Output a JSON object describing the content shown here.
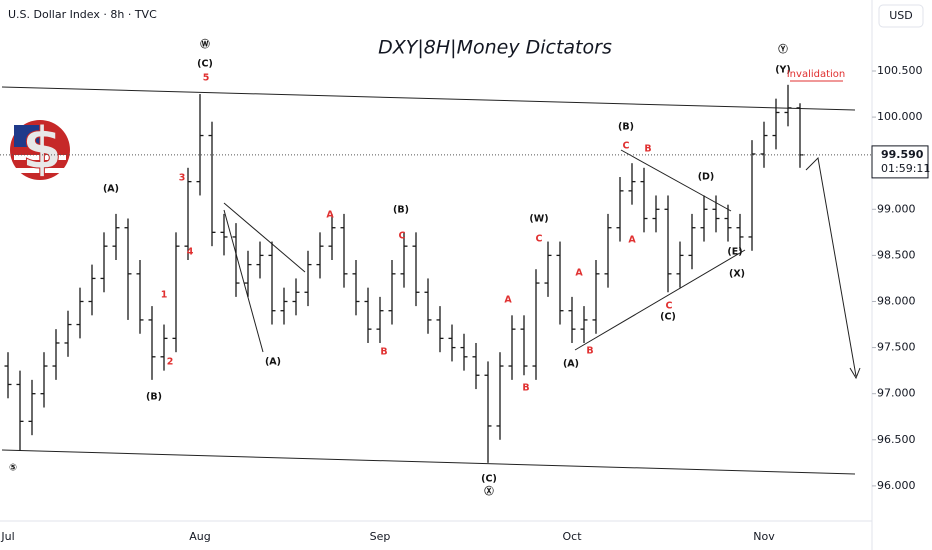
{
  "header": "U.S. Dollar Index · 8h · TVC",
  "chart_data": {
    "type": "ohlc",
    "title": "DXY|8H|Money Dictators",
    "currency": "USD",
    "color": "#1a1a1a",
    "categories": [
      "Jul",
      null,
      null,
      null,
      null,
      null,
      null,
      null,
      null,
      null,
      null,
      null,
      null,
      null,
      null,
      null,
      "Aug",
      null,
      null,
      null,
      null,
      null,
      null,
      null,
      null,
      null,
      null,
      null,
      null,
      null,
      null,
      "Sep",
      null,
      null,
      null,
      null,
      null,
      null,
      null,
      null,
      null,
      null,
      null,
      null,
      null,
      null,
      null,
      "Oct",
      null,
      null,
      null,
      null,
      null,
      null,
      null,
      null,
      null,
      null,
      null,
      null,
      null,
      null,
      null,
      "Nov",
      null,
      null,
      null
    ],
    "open": [
      97.3,
      97.1,
      96.7,
      97.0,
      97.3,
      97.55,
      97.75,
      98.0,
      98.25,
      98.6,
      98.8,
      98.3,
      97.8,
      97.4,
      97.6,
      98.6,
      99.3,
      99.8,
      98.75,
      98.7,
      98.2,
      98.4,
      98.5,
      97.9,
      98.0,
      98.1,
      98.4,
      98.6,
      98.8,
      98.3,
      98.0,
      97.7,
      97.9,
      98.3,
      98.6,
      98.1,
      97.8,
      97.6,
      97.5,
      97.4,
      97.2,
      96.65,
      97.3,
      97.7,
      97.3,
      98.2,
      98.5,
      97.9,
      97.7,
      97.8,
      98.3,
      98.8,
      99.2,
      99.3,
      98.9,
      99.0,
      98.3,
      98.5,
      98.8,
      99.0,
      98.9,
      98.8,
      98.7,
      99.6,
      99.8,
      100.05,
      100.1
    ],
    "high": [
      97.45,
      97.25,
      97.15,
      97.45,
      97.7,
      97.9,
      98.15,
      98.4,
      98.75,
      98.95,
      98.9,
      98.45,
      97.95,
      97.75,
      98.75,
      99.45,
      100.25,
      99.95,
      98.95,
      98.85,
      98.55,
      98.65,
      98.65,
      98.15,
      98.25,
      98.55,
      98.75,
      98.95,
      98.95,
      98.45,
      98.15,
      98.05,
      98.45,
      98.75,
      98.75,
      98.25,
      97.95,
      97.75,
      97.65,
      97.55,
      97.35,
      97.45,
      97.85,
      97.85,
      98.35,
      98.65,
      98.65,
      98.05,
      97.95,
      98.45,
      98.95,
      99.35,
      99.5,
      99.45,
      99.15,
      99.15,
      98.65,
      98.95,
      99.15,
      99.15,
      99.05,
      98.95,
      99.75,
      99.95,
      100.2,
      100.35,
      100.15
    ],
    "low": [
      96.95,
      96.38,
      96.55,
      96.85,
      97.15,
      97.4,
      97.6,
      97.85,
      98.1,
      98.45,
      97.8,
      97.65,
      97.15,
      97.25,
      97.45,
      98.45,
      99.15,
      98.6,
      98.5,
      98.05,
      98.05,
      98.25,
      97.75,
      97.75,
      97.85,
      97.95,
      98.25,
      98.45,
      98.15,
      97.85,
      97.55,
      97.55,
      97.75,
      98.15,
      97.95,
      97.65,
      97.45,
      97.35,
      97.25,
      97.05,
      96.25,
      96.5,
      97.15,
      97.2,
      97.15,
      98.05,
      97.75,
      97.55,
      97.55,
      97.65,
      98.15,
      98.65,
      99.05,
      98.75,
      98.75,
      98.1,
      98.15,
      98.35,
      98.65,
      98.75,
      98.65,
      98.55,
      98.55,
      99.45,
      99.65,
      99.9,
      99.45
    ],
    "close": [
      97.1,
      96.7,
      97.0,
      97.3,
      97.55,
      97.75,
      98.0,
      98.25,
      98.6,
      98.8,
      98.3,
      97.8,
      97.4,
      97.6,
      98.6,
      99.3,
      99.8,
      98.75,
      98.7,
      98.2,
      98.4,
      98.5,
      97.9,
      98.0,
      98.1,
      98.4,
      98.6,
      98.8,
      98.3,
      98.0,
      97.7,
      97.9,
      98.3,
      98.6,
      98.1,
      97.8,
      97.6,
      97.5,
      97.4,
      97.2,
      96.65,
      97.3,
      97.7,
      97.3,
      98.2,
      98.5,
      97.9,
      97.7,
      97.8,
      98.3,
      98.8,
      99.2,
      99.3,
      98.9,
      99.0,
      98.3,
      98.5,
      98.8,
      99.0,
      98.9,
      98.8,
      98.7,
      99.6,
      99.8,
      100.05,
      100.1,
      99.59
    ],
    "ylim": [
      95.63,
      101.27
    ],
    "yticks": [
      {
        "value": 96,
        "label": "96.000"
      },
      {
        "value": 96.5,
        "label": "96.500"
      },
      {
        "value": 97,
        "label": "97.000"
      },
      {
        "value": 97.5,
        "label": "97.500"
      },
      {
        "value": 98,
        "label": "98.000"
      },
      {
        "value": 98.5,
        "label": "98.500"
      },
      {
        "value": 99,
        "label": "99.000"
      },
      {
        "value": 99.5,
        "label": "99.500"
      },
      {
        "value": 100,
        "label": "100.000"
      },
      {
        "value": 100.5,
        "label": "100.500"
      }
    ],
    "last_price": {
      "value": 99.59,
      "label": "99.590"
    },
    "countdown": "01:59:11",
    "annotations": [
      {
        "text": "Ⓦ",
        "color": "#111"
      },
      {
        "text": "(C)",
        "color": "#111"
      },
      {
        "text": "5",
        "color": "#e03030"
      },
      {
        "text": "(A)",
        "color": "#111"
      },
      {
        "text": "(B)",
        "color": "#111"
      },
      {
        "text": "1",
        "color": "#e03030"
      },
      {
        "text": "2",
        "color": "#e03030"
      },
      {
        "text": "3",
        "color": "#e03030"
      },
      {
        "text": "4",
        "color": "#e03030"
      },
      {
        "text": "(A)",
        "color": "#111"
      },
      {
        "text": "A",
        "color": "#e03030"
      },
      {
        "text": "B",
        "color": "#e03030"
      },
      {
        "text": "(B)",
        "color": "#111"
      },
      {
        "text": "C",
        "color": "#e03030"
      },
      {
        "text": "(W)",
        "color": "#111"
      },
      {
        "text": "C",
        "color": "#e03030"
      },
      {
        "text": "A",
        "color": "#e03030"
      },
      {
        "text": "B",
        "color": "#e03030"
      },
      {
        "text": "(C)",
        "color": "#111"
      },
      {
        "text": "Ⓧ",
        "color": "#111"
      },
      {
        "text": "⑤",
        "color": "#111"
      },
      {
        "text": "A",
        "color": "#e03030"
      },
      {
        "text": "B",
        "color": "#e03030"
      },
      {
        "text": "(A)",
        "color": "#111"
      },
      {
        "text": "(B)",
        "color": "#111"
      },
      {
        "text": "C",
        "color": "#e03030"
      },
      {
        "text": "B",
        "color": "#e03030"
      },
      {
        "text": "A",
        "color": "#e03030"
      },
      {
        "text": "C",
        "color": "#e03030"
      },
      {
        "text": "(C)",
        "color": "#111"
      },
      {
        "text": "(D)",
        "color": "#111"
      },
      {
        "text": "(E)",
        "color": "#111"
      },
      {
        "text": "(X)",
        "color": "#111"
      },
      {
        "text": "Ⓨ",
        "color": "#111"
      },
      {
        "text": "(Y)",
        "color": "#111"
      },
      {
        "text": "Invalidation",
        "color": "#e03030"
      }
    ]
  }
}
